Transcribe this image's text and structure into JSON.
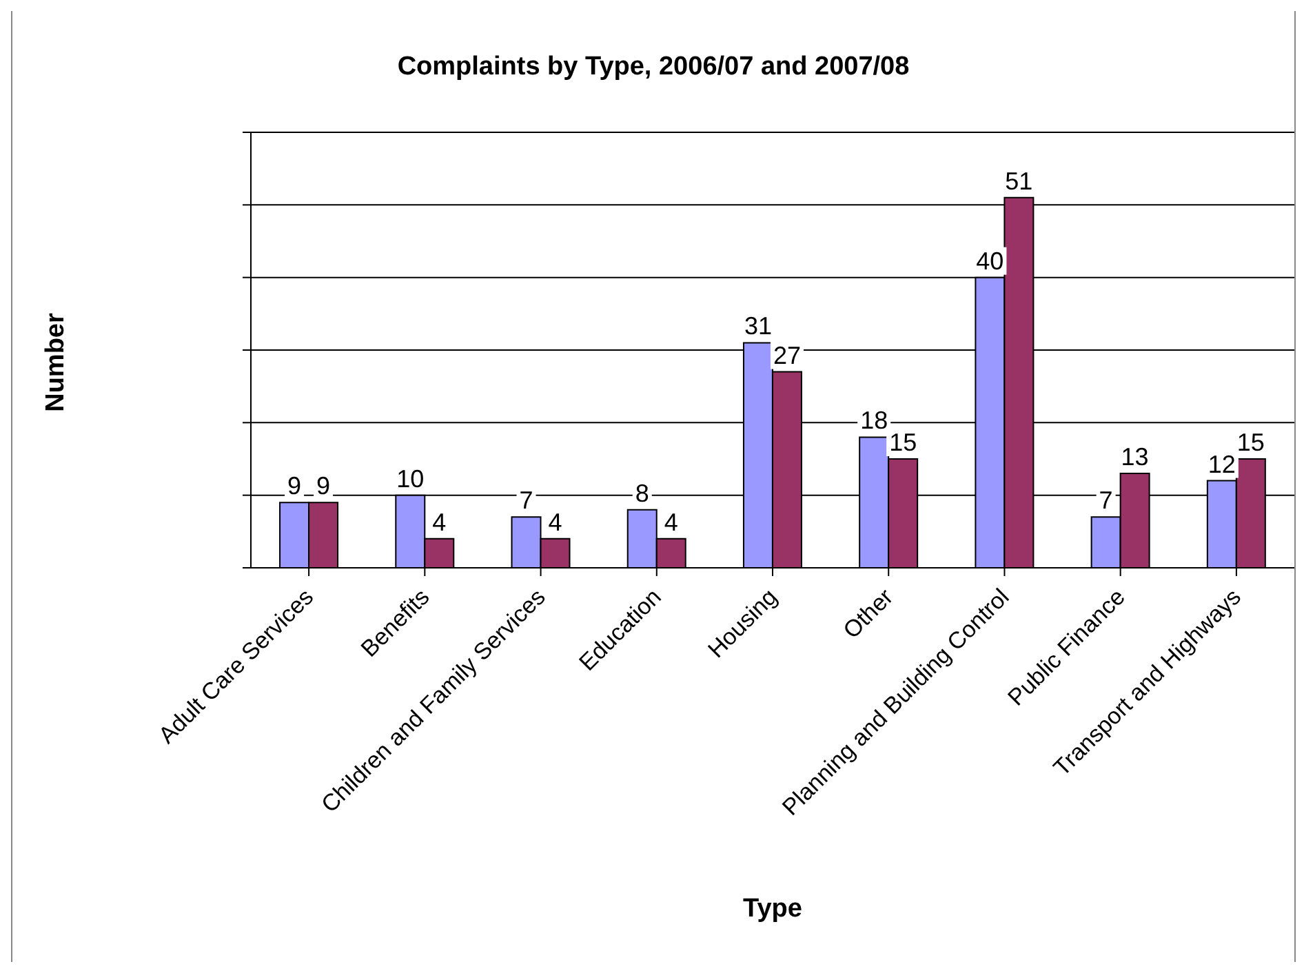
{
  "chart_data": {
    "type": "bar",
    "title": "Complaints by Type, 2006/07 and 2007/08",
    "xlabel": "Type",
    "ylabel": "Number",
    "categories": [
      "Adult Care Services",
      "Benefits",
      "Children and Family Services",
      "Education",
      "Housing",
      "Other",
      "Planning and Building Control",
      "Public Finance",
      "Transport and Highways"
    ],
    "series": [
      {
        "color": "#9999ff",
        "values": [
          9,
          10,
          7,
          8,
          31,
          18,
          40,
          7,
          12
        ]
      },
      {
        "color": "#993366",
        "values": [
          9,
          4,
          4,
          4,
          27,
          15,
          51,
          13,
          15
        ]
      }
    ],
    "ylim": [
      0,
      60
    ],
    "yticks": [
      {
        "value": 0,
        "label": null
      },
      {
        "value": 10,
        "label": null
      },
      {
        "value": 20,
        "label": null
      },
      {
        "value": 30,
        "label": null
      },
      {
        "value": 40,
        "label": null
      },
      {
        "value": 50,
        "label": null
      },
      {
        "value": 60,
        "label": null
      }
    ],
    "grid": "y",
    "tick_labels": "x",
    "data_labels": true
  }
}
